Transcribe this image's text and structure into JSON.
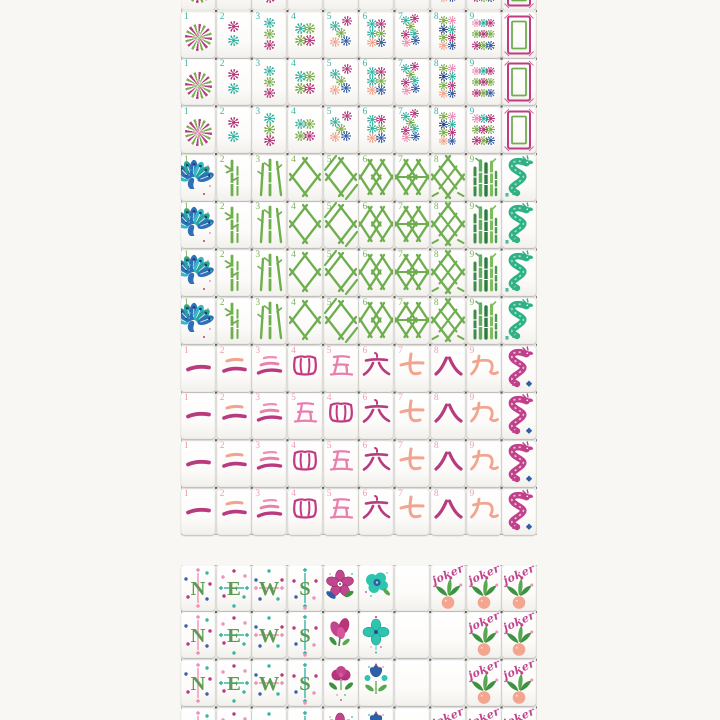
{
  "photo": {
    "subject": "Colorful mahjong tile set arranged in rows on a white surface",
    "sections_visible": [
      "dots suit 1-9 with white dragon",
      "bamboo suit 1-9 with green dragon",
      "character suit 1-9 with red dragon",
      "winds N E W S, flowers, blanks and jokers"
    ]
  },
  "colors": {
    "background": "#f8f7f4",
    "tileFace": "#ffffff",
    "gap": "#eceae5",
    "magenta": "#b73b7e",
    "teal": "#3ab5a4",
    "green": "#7dae4f",
    "bambooGreen": "#6fae4e",
    "blue": "#3a62a8",
    "peach": "#f2a58e",
    "pink": "#ee93b7",
    "navy": "#2e4a8e",
    "dragonGreen": "#2eb184",
    "dragonPink": "#c0408c",
    "soapPink": "#c23b82",
    "soapGreen": "#6fae4e",
    "windLetterGreen": "#5d9b52",
    "jokerScript": "#c2458f",
    "numeralDots": "#3eb2a4",
    "numeralBams": "#7cb356",
    "numeralCraks": "#ef9db4"
  },
  "tiles": {
    "numerals": [
      "1",
      "2",
      "3",
      "4",
      "5",
      "6",
      "7",
      "8",
      "9"
    ],
    "windLetters": [
      "N",
      "E",
      "W",
      "S"
    ],
    "jokerLabel": "joker"
  },
  "layout": {
    "sections": [
      {
        "name": "dots",
        "block": "main",
        "rows": [
          {
            "partial": "top",
            "cells": [
              "dot1",
              "dot2",
              "dot3",
              "dot4",
              "dot5",
              "dot6",
              "dot7",
              "dot8",
              "dot9",
              "soap"
            ]
          },
          {
            "cells": [
              "dot1",
              "dot2",
              "dot3",
              "dot4",
              "dot5",
              "dot6",
              "dot7",
              "dot8",
              "dot9",
              "soap"
            ]
          },
          {
            "cells": [
              "dot1",
              "dot2",
              "dot3",
              "dot4",
              "dot5",
              "dot6",
              "dot7",
              "dot8",
              "dot9",
              "soap"
            ]
          },
          {
            "cells": [
              "dot1",
              "dot2",
              "dot3",
              "dot4",
              "dot5",
              "dot6",
              "dot7",
              "dot8",
              "dot9",
              "soap"
            ]
          }
        ]
      },
      {
        "name": "bamboos",
        "block": "main",
        "rows": [
          {
            "cells": [
              "bam1",
              "bam2",
              "bam3",
              "bam4",
              "bam5",
              "bam6",
              "bam7",
              "bam8",
              "bam9",
              "dgreen"
            ]
          },
          {
            "cells": [
              "bam1",
              "bam2",
              "bam3",
              "bam4",
              "bam5",
              "bam6",
              "bam7",
              "bam8",
              "bam9",
              "dgreen"
            ]
          },
          {
            "cells": [
              "bam1",
              "bam2",
              "bam3",
              "bam4",
              "bam5",
              "bam6",
              "bam7",
              "bam8",
              "bam9",
              "dgreen"
            ]
          },
          {
            "cells": [
              "bam1",
              "bam2",
              "bam3",
              "bam4",
              "bam5",
              "bam6",
              "bam7",
              "bam8",
              "bam9",
              "dgreen"
            ]
          }
        ]
      },
      {
        "name": "characters",
        "block": "main",
        "rows": [
          {
            "cells": [
              "crak1",
              "crak2",
              "crak3",
              "crak4",
              "crak5",
              "crak6",
              "crak7",
              "crak8",
              "crak9",
              "dred"
            ]
          },
          {
            "cells": [
              "crak1",
              "crak2",
              "crak3",
              "crak5",
              "crak4",
              "crak6",
              "crak7",
              "crak8",
              "crak9",
              "dred"
            ]
          },
          {
            "cells": [
              "crak1",
              "crak2",
              "crak3",
              "crak4",
              "crak5",
              "crak6",
              "crak7",
              "crak8",
              "crak9",
              "dred"
            ]
          },
          {
            "cells": [
              "crak1",
              "crak2",
              "crak3",
              "crak4",
              "crak5",
              "crak6",
              "crak7",
              "crak8",
              "crak9",
              "dred"
            ]
          }
        ]
      },
      {
        "name": "honors",
        "block": "honors",
        "rows": [
          {
            "cells": [
              "windN",
              "windE",
              "windW",
              "windS",
              "fM1",
              "fT1",
              "blank",
              "joker",
              "joker",
              "joker"
            ]
          },
          {
            "cells": [
              "windN",
              "windE",
              "windW",
              "windS",
              "fM2",
              "fT2",
              "blank",
              "blank",
              "joker",
              "joker"
            ]
          },
          {
            "cells": [
              "windN",
              "windE",
              "windW",
              "windS",
              "fM3",
              "fT3",
              "blank",
              "blank",
              "joker",
              "joker"
            ]
          },
          {
            "partial": "bottom",
            "cells": [
              "windN",
              "windE",
              "windW",
              "windS",
              "fM1",
              "fT3",
              "blank",
              "joker",
              "joker",
              "joker"
            ]
          }
        ]
      }
    ]
  }
}
